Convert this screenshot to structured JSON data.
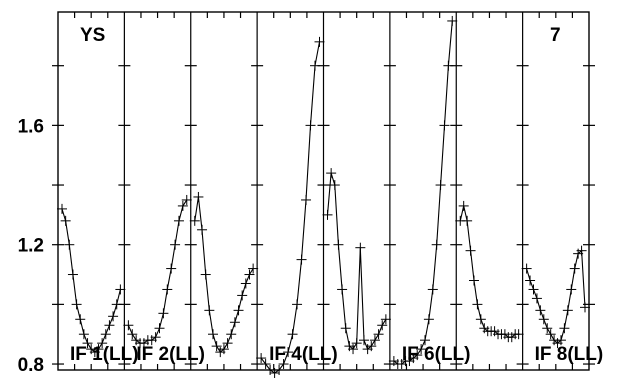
{
  "chart_data": {
    "type": "line",
    "title": "",
    "xlabel": "",
    "ylabel": "",
    "ylim": [
      0.78,
      1.98
    ],
    "y_ticks": [
      0.8,
      1.2,
      1.6
    ],
    "y_tick_labels": [
      "0.8",
      "1.2",
      "1.6"
    ],
    "corner_labels": {
      "left": "YS",
      "right": "7"
    },
    "grid": false,
    "legend": "none",
    "series": [
      {
        "name": "IF 1(LL)",
        "label": "IF 1(LL)",
        "values": [
          1.32,
          1.28,
          1.2,
          1.1,
          1.0,
          0.95,
          0.9,
          0.87,
          0.85,
          0.84,
          0.85,
          0.87,
          0.9,
          0.93,
          0.96,
          1.0,
          1.05
        ]
      },
      {
        "name": "IF 2(LL)",
        "label": "IF 2(LL)",
        "values": [
          0.93,
          0.9,
          0.88,
          0.87,
          0.87,
          0.88,
          0.88,
          0.89,
          0.92,
          0.97,
          1.05,
          1.12,
          1.2,
          1.28,
          1.33,
          1.35
        ]
      },
      {
        "name": "",
        "label": "",
        "values": [
          1.28,
          1.36,
          1.25,
          1.1,
          0.98,
          0.9,
          0.86,
          0.84,
          0.85,
          0.87,
          0.9,
          0.94,
          0.98,
          1.03,
          1.07,
          1.1,
          1.12
        ]
      },
      {
        "name": "IF 4(LL)",
        "label": "IF 4(LL)",
        "values": [
          0.82,
          0.8,
          0.78,
          0.77,
          0.78,
          0.8,
          0.84,
          0.9,
          1.0,
          1.15,
          1.35,
          1.6,
          1.8,
          1.88
        ]
      },
      {
        "name": "",
        "label": "",
        "values": [
          1.3,
          1.44,
          1.4,
          1.2,
          1.05,
          0.92,
          0.86,
          0.85,
          0.87,
          1.19,
          0.88,
          0.85,
          0.86,
          0.88,
          0.9,
          0.93,
          0.95
        ]
      },
      {
        "name": "IF 6(LL)",
        "label": "IF 6(LL)",
        "values": [
          0.81,
          0.8,
          0.8,
          0.81,
          0.81,
          0.82,
          0.83,
          0.85,
          0.88,
          0.95,
          1.05,
          1.2,
          1.4,
          1.6,
          1.8,
          1.95
        ]
      },
      {
        "name": "",
        "label": "",
        "values": [
          1.28,
          1.33,
          1.28,
          1.18,
          1.08,
          1.0,
          0.95,
          0.92,
          0.91,
          0.91,
          0.91,
          0.9,
          0.9,
          0.9,
          0.89,
          0.89,
          0.9,
          0.9
        ]
      },
      {
        "name": "IF 8(LL)",
        "label": "IF 8(LL)",
        "values": [
          1.12,
          1.08,
          1.05,
          1.02,
          0.98,
          0.95,
          0.92,
          0.9,
          0.88,
          0.87,
          0.88,
          0.92,
          0.98,
          1.05,
          1.12,
          1.17,
          1.18,
          0.99
        ]
      }
    ]
  }
}
